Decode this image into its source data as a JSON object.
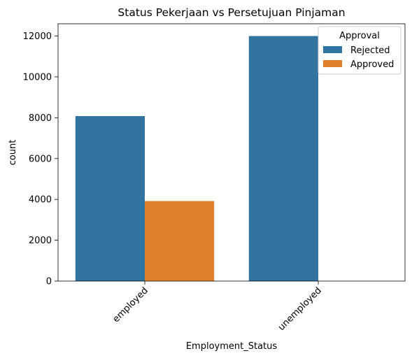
{
  "chart_data": {
    "type": "bar",
    "title": "Status Pekerjaan vs Persetujuan Pinjaman",
    "xlabel": "Employment_Status",
    "ylabel": "count",
    "categories": [
      "employed",
      "unemployed"
    ],
    "series": [
      {
        "name": "Rejected",
        "values": [
          8080,
          12000
        ],
        "color": "#3274a1"
      },
      {
        "name": "Approved",
        "values": [
          3920,
          0
        ],
        "color": "#e1812c"
      }
    ],
    "ylim": [
      0,
      12600
    ],
    "yticks": [
      0,
      2000,
      4000,
      6000,
      8000,
      10000,
      12000
    ],
    "legend": {
      "title": "Approval",
      "placement": "top-right"
    },
    "grid": false
  }
}
